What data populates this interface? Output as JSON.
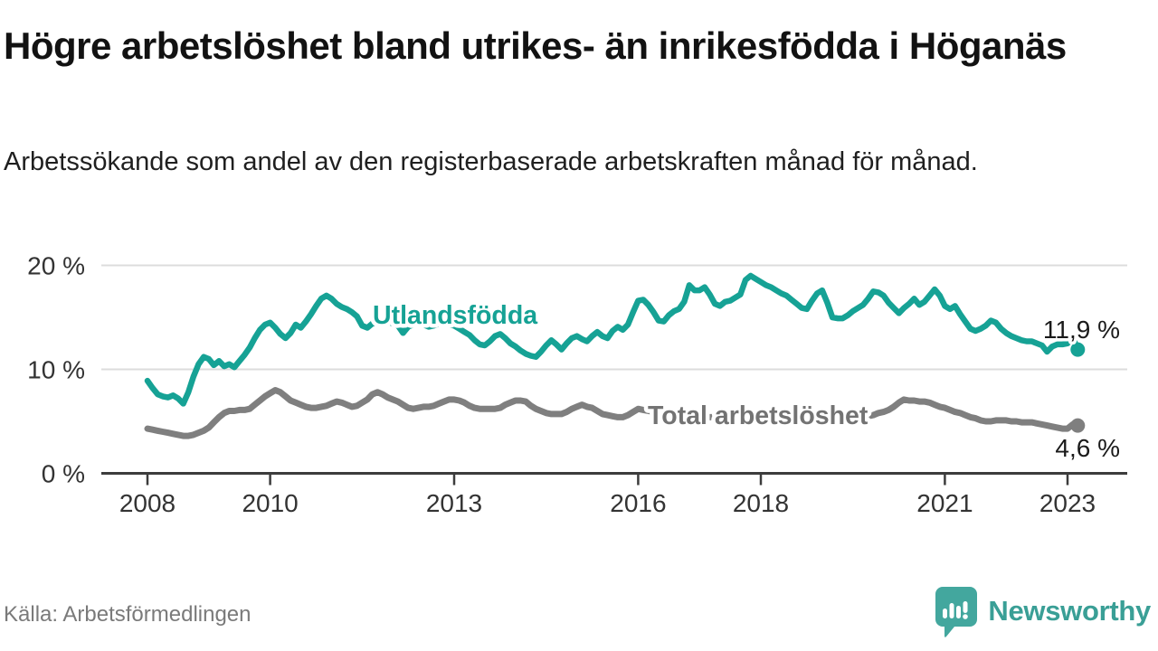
{
  "header": {
    "title": "Högre arbetslöshet bland utrikes- än inrikesfödda i Höganäs",
    "subtitle": "Arbetssökande som andel av den registerbaserade arbetskraften månad för månad."
  },
  "footer": {
    "source": "Källa: Arbetsförmedlingen",
    "brand": "Newsworthy",
    "brand_color": "#3a9f96",
    "brand_icon": "speech-bubble-bar-chart"
  },
  "chart_data": {
    "type": "line",
    "title": "Högre arbetslöshet bland utrikes- än inrikesfödda i Höganäs",
    "subtitle": "Arbetssökande som andel av den registerbaserade arbetskraften månad för månad.",
    "source": "Källa: Arbetsförmedlingen",
    "x": {
      "start_year": 2008,
      "frequency": "monthly",
      "end": "2023-03",
      "points": 183
    },
    "x_tick_years": [
      2008,
      2010,
      2013,
      2016,
      2018,
      2021,
      2023
    ],
    "y_ticks": [
      {
        "value": 0,
        "label": "0 %"
      },
      {
        "value": 10,
        "label": "10 %"
      },
      {
        "value": 20,
        "label": "20 %"
      }
    ],
    "ylim": [
      0,
      21.5
    ],
    "grid": "horizontal",
    "legend_position": "inline-labels",
    "series": [
      {
        "name": "Utlandsfödda",
        "color": "#16a295",
        "label_color": "#16a295",
        "end_label": "11,9 %",
        "end_value": 11.9,
        "values": [
          8.9,
          8.2,
          7.6,
          7.4,
          7.3,
          7.5,
          7.2,
          6.7,
          7.8,
          9.3,
          10.5,
          11.2,
          11.0,
          10.4,
          10.8,
          10.3,
          10.5,
          10.2,
          10.8,
          11.4,
          12.1,
          13.0,
          13.8,
          14.3,
          14.5,
          14.0,
          13.4,
          13.0,
          13.5,
          14.3,
          14.0,
          14.6,
          15.3,
          16.1,
          16.8,
          17.1,
          16.8,
          16.3,
          16.0,
          15.8,
          15.5,
          15.1,
          14.2,
          14.0,
          14.4,
          14.5,
          14.5,
          14.6,
          14.4,
          14.2,
          13.5,
          14.1,
          14.3,
          14.5,
          14.3,
          14.1,
          14.2,
          14.4,
          14.4,
          14.3,
          14.2,
          13.9,
          13.6,
          13.3,
          12.8,
          12.4,
          12.3,
          12.7,
          13.2,
          13.4,
          13.0,
          12.5,
          12.2,
          11.8,
          11.5,
          11.3,
          11.2,
          11.7,
          12.3,
          12.8,
          12.4,
          11.9,
          12.5,
          13.0,
          13.2,
          12.9,
          12.7,
          13.2,
          13.6,
          13.2,
          13.0,
          13.7,
          14.1,
          13.8,
          14.3,
          15.5,
          16.6,
          16.7,
          16.2,
          15.5,
          14.7,
          14.6,
          15.2,
          15.6,
          15.8,
          16.5,
          18.1,
          17.6,
          17.6,
          17.9,
          17.2,
          16.3,
          16.1,
          16.5,
          16.6,
          16.9,
          17.2,
          18.6,
          19.0,
          18.7,
          18.4,
          18.1,
          17.9,
          17.6,
          17.3,
          17.1,
          16.7,
          16.3,
          15.9,
          15.8,
          16.6,
          17.3,
          17.6,
          16.4,
          15.0,
          14.9,
          14.9,
          15.2,
          15.6,
          15.9,
          16.2,
          16.8,
          17.5,
          17.4,
          17.1,
          16.4,
          15.9,
          15.4,
          15.9,
          16.3,
          16.8,
          16.2,
          16.5,
          17.1,
          17.7,
          17.1,
          16.1,
          15.8,
          16.1,
          15.3,
          14.6,
          13.9,
          13.7,
          13.9,
          14.2,
          14.7,
          14.5,
          13.9,
          13.5,
          13.2,
          13.0,
          12.8,
          12.7,
          12.7,
          12.5,
          12.3,
          11.7,
          12.2,
          12.4,
          12.4,
          12.5,
          13.1,
          11.9
        ]
      },
      {
        "name": "Total arbetslöshet",
        "color": "#7f7f7f",
        "label_color": "#737373",
        "end_label": "4,6 %",
        "end_value": 4.6,
        "values": [
          4.3,
          4.2,
          4.1,
          4.0,
          3.9,
          3.8,
          3.7,
          3.6,
          3.6,
          3.7,
          3.9,
          4.1,
          4.4,
          4.9,
          5.4,
          5.8,
          6.0,
          6.0,
          6.1,
          6.1,
          6.2,
          6.6,
          7.0,
          7.4,
          7.7,
          8.0,
          7.8,
          7.4,
          7.0,
          6.8,
          6.6,
          6.4,
          6.3,
          6.3,
          6.4,
          6.5,
          6.7,
          6.9,
          6.8,
          6.6,
          6.4,
          6.5,
          6.8,
          7.1,
          7.6,
          7.8,
          7.6,
          7.3,
          7.1,
          6.9,
          6.6,
          6.3,
          6.2,
          6.3,
          6.4,
          6.4,
          6.5,
          6.7,
          6.9,
          7.1,
          7.1,
          7.0,
          6.8,
          6.5,
          6.3,
          6.2,
          6.2,
          6.2,
          6.2,
          6.3,
          6.6,
          6.8,
          7.0,
          7.0,
          6.9,
          6.5,
          6.2,
          6.0,
          5.8,
          5.7,
          5.7,
          5.7,
          5.9,
          6.2,
          6.4,
          6.6,
          6.4,
          6.3,
          6.0,
          5.7,
          5.6,
          5.5,
          5.4,
          5.4,
          5.6,
          5.9,
          6.2,
          6.1,
          6.0,
          5.9,
          5.8,
          5.7,
          5.6,
          5.6,
          5.5,
          5.5,
          5.6,
          5.6,
          5.5,
          5.5,
          5.4,
          5.4,
          5.3,
          5.3,
          5.2,
          5.2,
          5.3,
          5.3,
          5.4,
          5.4,
          5.4,
          5.3,
          5.2,
          5.2,
          5.1,
          5.2,
          5.2,
          5.3,
          5.3,
          5.4,
          5.4,
          5.5,
          5.5,
          5.4,
          5.4,
          5.3,
          5.4,
          5.4,
          5.5,
          5.6,
          5.6,
          5.5,
          5.6,
          5.8,
          5.9,
          6.1,
          6.4,
          6.8,
          7.1,
          7.0,
          7.0,
          6.9,
          6.9,
          6.8,
          6.6,
          6.4,
          6.3,
          6.1,
          5.9,
          5.8,
          5.6,
          5.4,
          5.3,
          5.1,
          5.0,
          5.0,
          5.1,
          5.1,
          5.1,
          5.0,
          5.0,
          4.9,
          4.9,
          4.9,
          4.8,
          4.7,
          4.6,
          4.5,
          4.4,
          4.3,
          4.3,
          4.7,
          4.6
        ]
      }
    ]
  }
}
